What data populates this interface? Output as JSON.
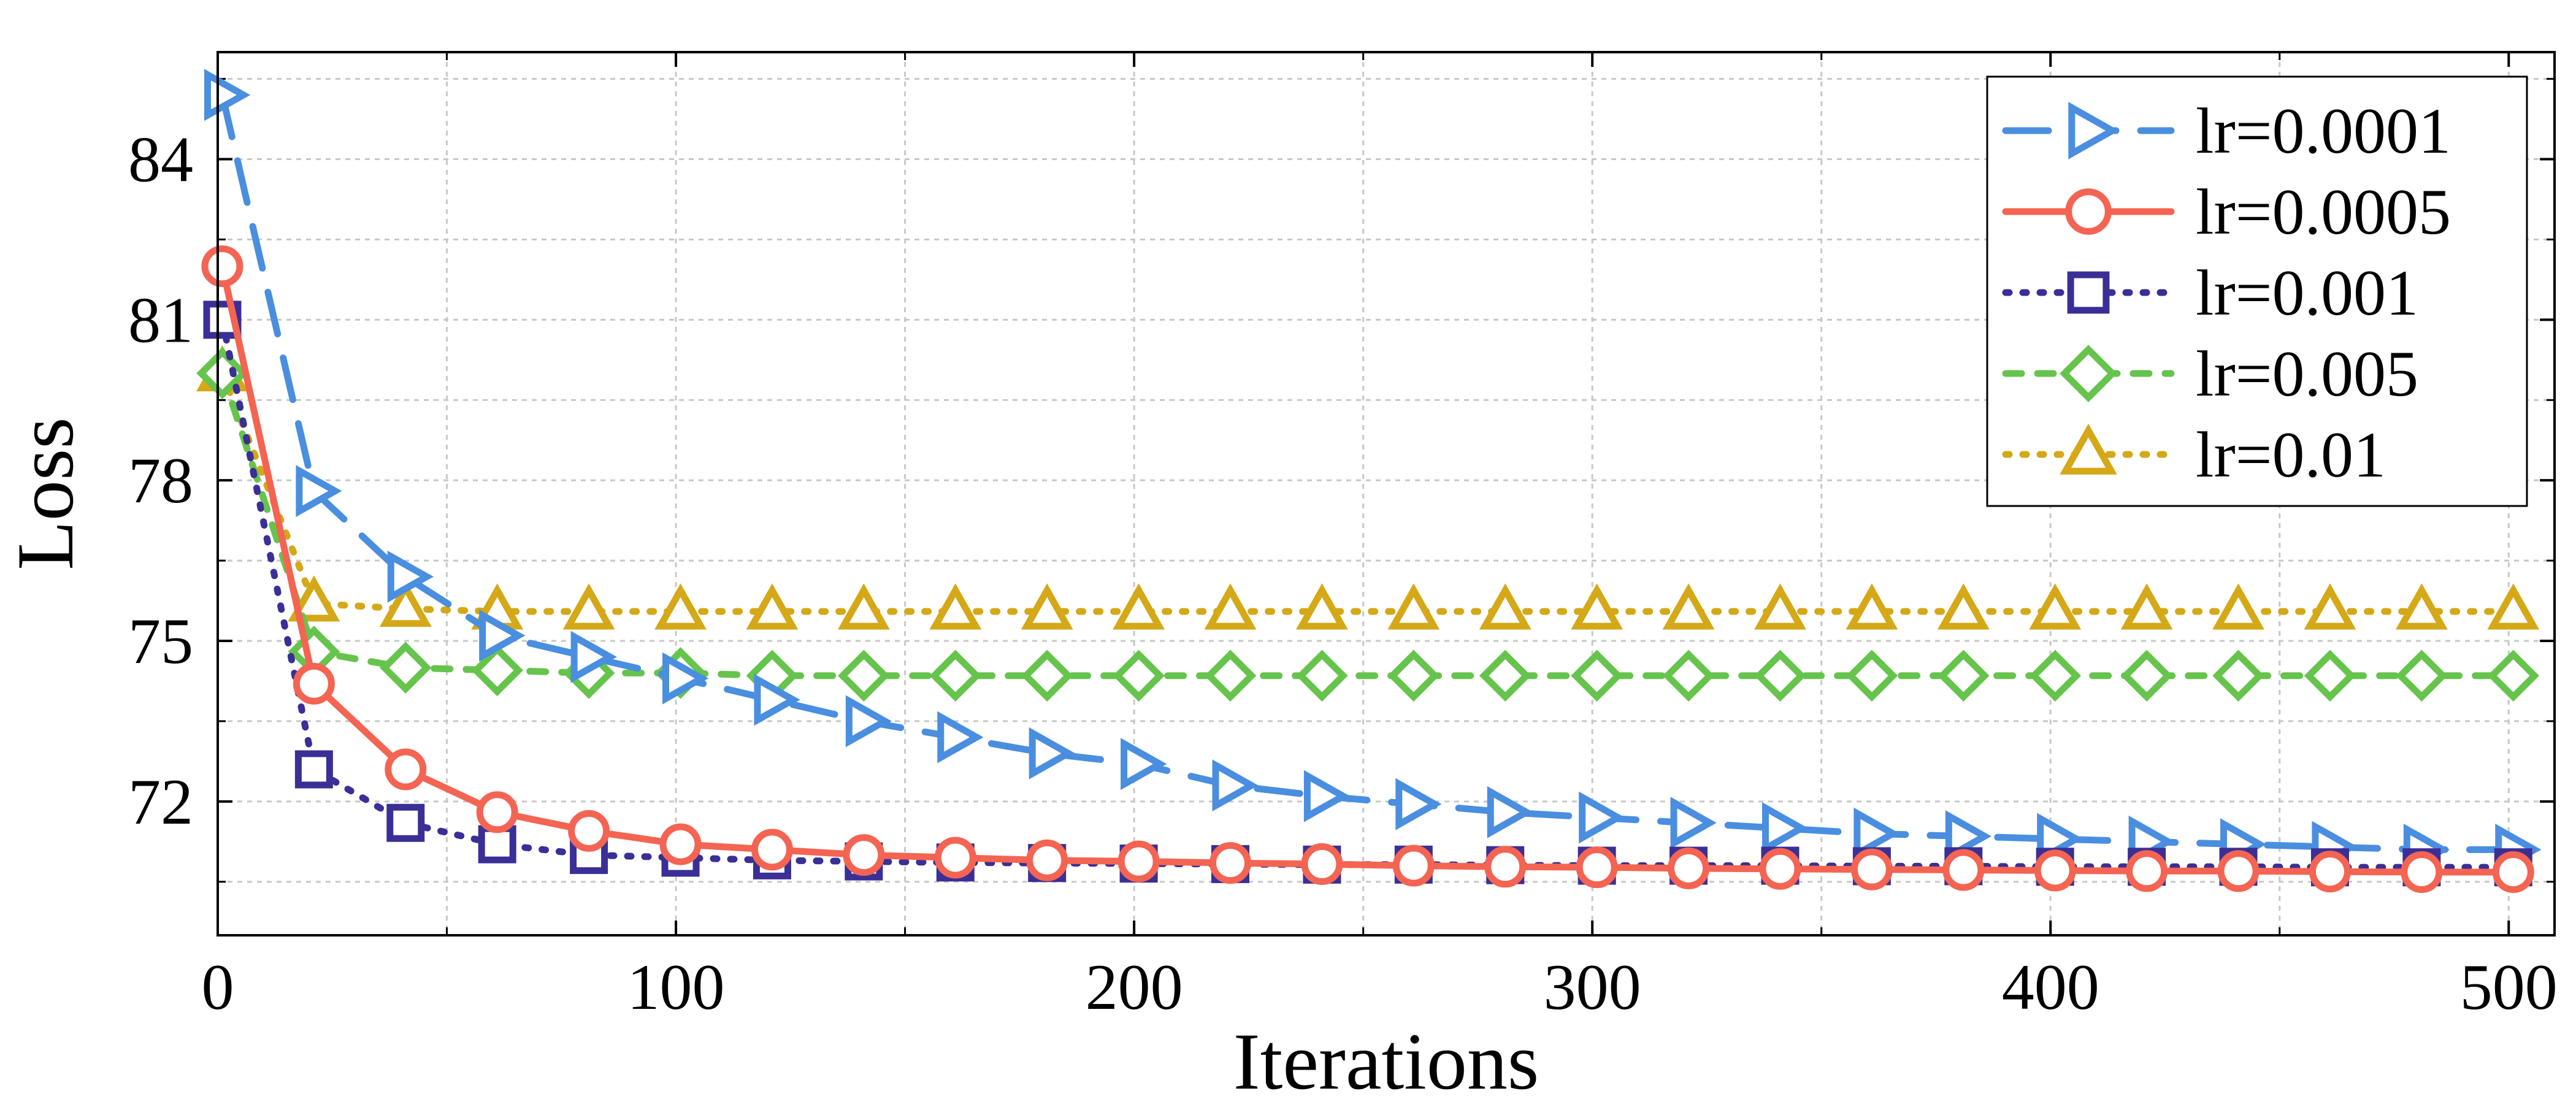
{
  "chart_data": {
    "type": "line",
    "title": "",
    "xlabel": "Iterations",
    "ylabel": "Loss",
    "xlim": [
      0,
      510
    ],
    "ylim": [
      69.5,
      86
    ],
    "x_ticks": [
      0,
      100,
      200,
      300,
      400,
      500
    ],
    "x_tick_labels": [
      "0",
      "100",
      "200",
      "300",
      "400",
      "500"
    ],
    "y_ticks": [
      72,
      75,
      78,
      81,
      84
    ],
    "y_tick_labels": [
      "72",
      "75",
      "78",
      "81",
      "84"
    ],
    "grid": true,
    "legend_position": "top-right",
    "x": [
      1,
      21,
      41,
      61,
      81,
      101,
      121,
      141,
      161,
      181,
      201,
      221,
      241,
      261,
      281,
      301,
      321,
      341,
      361,
      381,
      401,
      421,
      441,
      461,
      481,
      501
    ],
    "series": [
      {
        "name": "lr=0.0001",
        "color": "#4a8ee0",
        "marker": "triangle-right",
        "dash": "long-dash",
        "values": [
          85.2,
          77.8,
          76.2,
          75.1,
          74.7,
          74.3,
          73.9,
          73.5,
          73.2,
          72.9,
          72.7,
          72.3,
          72.1,
          71.95,
          71.8,
          71.7,
          71.6,
          71.5,
          71.4,
          71.35,
          71.3,
          71.25,
          71.2,
          71.15,
          71.1,
          71.1
        ]
      },
      {
        "name": "lr=0.0005",
        "color": "#f46452",
        "marker": "circle",
        "dash": "solid",
        "values": [
          82.0,
          74.2,
          72.6,
          71.8,
          71.45,
          71.2,
          71.1,
          71.0,
          70.95,
          70.9,
          70.88,
          70.85,
          70.83,
          70.8,
          70.78,
          70.77,
          70.75,
          70.74,
          70.73,
          70.72,
          70.71,
          70.7,
          70.7,
          70.69,
          70.68,
          70.68
        ]
      },
      {
        "name": "lr=0.001",
        "color": "#3a2f96",
        "marker": "square",
        "dash": "dotted",
        "values": [
          81.0,
          72.6,
          71.6,
          71.2,
          71.0,
          70.95,
          70.9,
          70.88,
          70.86,
          70.85,
          70.84,
          70.83,
          70.82,
          70.82,
          70.81,
          70.8,
          70.8,
          70.8,
          70.79,
          70.79,
          70.78,
          70.78,
          70.78,
          70.77,
          70.77,
          70.77
        ]
      },
      {
        "name": "lr=0.005",
        "color": "#66c44c",
        "marker": "diamond",
        "dash": "dashed",
        "values": [
          80.0,
          74.8,
          74.5,
          74.45,
          74.4,
          74.4,
          74.35,
          74.35,
          74.35,
          74.35,
          74.35,
          74.35,
          74.35,
          74.35,
          74.35,
          74.35,
          74.35,
          74.35,
          74.35,
          74.35,
          74.35,
          74.35,
          74.35,
          74.35,
          74.35,
          74.35
        ]
      },
      {
        "name": "lr=0.01",
        "color": "#d4a817",
        "marker": "triangle-up",
        "dash": "dotted",
        "values": [
          80.0,
          75.7,
          75.6,
          75.55,
          75.55,
          75.55,
          75.55,
          75.55,
          75.55,
          75.55,
          75.55,
          75.55,
          75.55,
          75.55,
          75.55,
          75.55,
          75.55,
          75.55,
          75.55,
          75.55,
          75.55,
          75.55,
          75.55,
          75.55,
          75.55,
          75.55
        ]
      }
    ]
  }
}
